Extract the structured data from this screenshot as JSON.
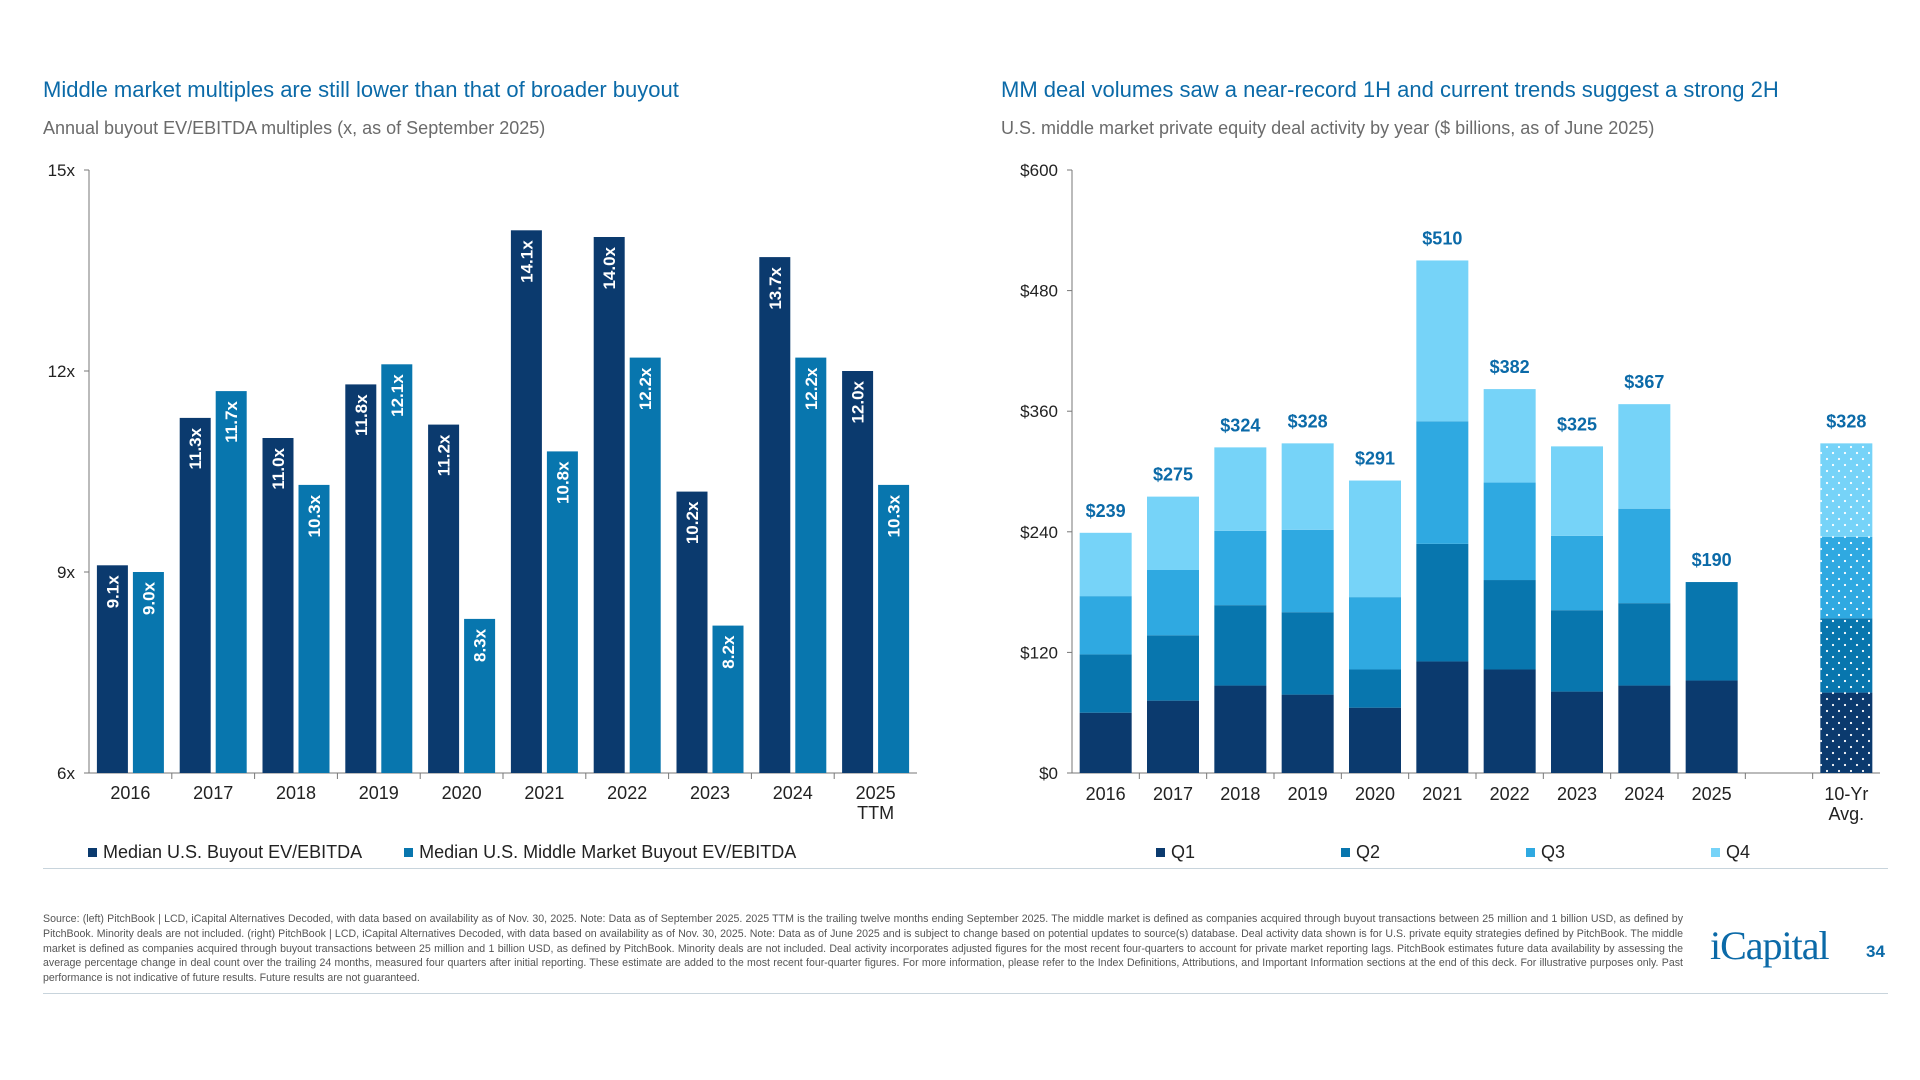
{
  "chart_data": [
    {
      "type": "bar",
      "title": "Middle market multiples are still lower than that of broader buyout",
      "subtitle": "Annual buyout EV/EBITDA multiples (x, as of September 2025)",
      "categories": [
        "2016",
        "2017",
        "2018",
        "2019",
        "2020",
        "2021",
        "2022",
        "2023",
        "2024",
        "2025 TTM"
      ],
      "series": [
        {
          "name": "Median U.S. Buyout EV/EBITDA",
          "color": "#0b3a6e",
          "values": [
            9.1,
            11.3,
            11.0,
            11.8,
            11.2,
            14.1,
            14.0,
            10.2,
            13.7,
            12.0
          ],
          "labels": [
            "9.1x",
            "11.3x",
            "11.0x",
            "11.8x",
            "11.2x",
            "14.1x",
            "14.0x",
            "10.2x",
            "13.7x",
            "12.0x"
          ]
        },
        {
          "name": "Median U.S. Middle Market Buyout EV/EBITDA",
          "color": "#0876ae",
          "values": [
            9.0,
            11.7,
            10.3,
            12.1,
            8.3,
            10.8,
            12.2,
            8.2,
            12.2,
            10.3
          ],
          "labels": [
            "9.0x",
            "11.7x",
            "10.3x",
            "12.1x",
            "8.3x",
            "10.8x",
            "12.2x",
            "8.2x",
            "12.2x",
            "10.3x"
          ]
        }
      ],
      "ylim": [
        6,
        15
      ],
      "yticks": [
        6,
        9,
        12,
        15
      ],
      "ytick_labels": [
        "6x",
        "9x",
        "12x",
        "15x"
      ],
      "grid": false,
      "legend": "bottom"
    },
    {
      "type": "bar",
      "stacked": true,
      "title": "MM deal volumes saw a near-record 1H and current trends suggest a strong 2H",
      "subtitle": "U.S. middle market private equity deal activity by year ($ billions, as of June 2025)",
      "categories": [
        "2016",
        "2017",
        "2018",
        "2019",
        "2020",
        "2021",
        "2022",
        "2023",
        "2024",
        "2025",
        "",
        "10-Yr Avg."
      ],
      "series": [
        {
          "name": "Q1",
          "color": "#0b3a6e",
          "values": [
            60,
            72,
            87,
            78,
            65,
            111,
            103,
            81,
            87,
            92,
            null,
            80
          ]
        },
        {
          "name": "Q2",
          "color": "#0876ae",
          "values": [
            58,
            65,
            80,
            82,
            38,
            117,
            89,
            81,
            82,
            98,
            null,
            74
          ]
        },
        {
          "name": "Q3",
          "color": "#2fa9e1",
          "values": [
            58,
            65,
            74,
            82,
            72,
            122,
            97,
            74,
            94,
            null,
            null,
            81
          ]
        },
        {
          "name": "Q4",
          "color": "#76d3f8",
          "values": [
            63,
            73,
            83,
            86,
            116,
            160,
            93,
            89,
            104,
            null,
            null,
            93
          ]
        }
      ],
      "totals": [
        "$239",
        "$275",
        "$324",
        "$328",
        "$291",
        "$510",
        "$382",
        "$325",
        "$367",
        "$190",
        "",
        "$328"
      ],
      "ylim": [
        0,
        600
      ],
      "yticks": [
        0,
        120,
        240,
        360,
        480,
        600
      ],
      "ytick_labels": [
        "$0",
        "$120",
        "$240",
        "$360",
        "$480",
        "$600"
      ],
      "grid": false,
      "legend": "bottom",
      "label_color": "#0b6aa8"
    }
  ],
  "footnote": "Source: (left) PitchBook | LCD, iCapital Alternatives Decoded, with data based on availability as of Nov. 30, 2025. Note: Data as of September 2025. 2025 TTM is the trailing twelve months ending September 2025. The middle market is defined as companies acquired through buyout transactions between 25 million and 1 billion USD, as defined by PitchBook. Minority deals are not included. (right) PitchBook | LCD, iCapital Alternatives Decoded, with data based on availability as of Nov. 30, 2025. Note: Data as of June 2025 and is subject to change based on potential updates to source(s) database. Deal activity data shown is for U.S. private equity strategies defined by PitchBook. The middle market is defined as companies acquired through buyout transactions between 25 million and 1 billion USD, as defined by PitchBook. Minority deals are not included. Deal activity incorporates adjusted figures for the most recent four-quarters to account for private market reporting lags. PitchBook estimates future data availability by assessing the average percentage change in deal count over the trailing 24 months, measured four quarters after initial reporting. These estimate are added to the most recent four-quarter figures. For more information, please refer to the Index Definitions, Attributions, and Important Information sections at the end of this deck. For illustrative purposes only. Past performance is not indicative of future results. Future results are not guaranteed.",
  "logo": "iCapital",
  "page_number": "34"
}
